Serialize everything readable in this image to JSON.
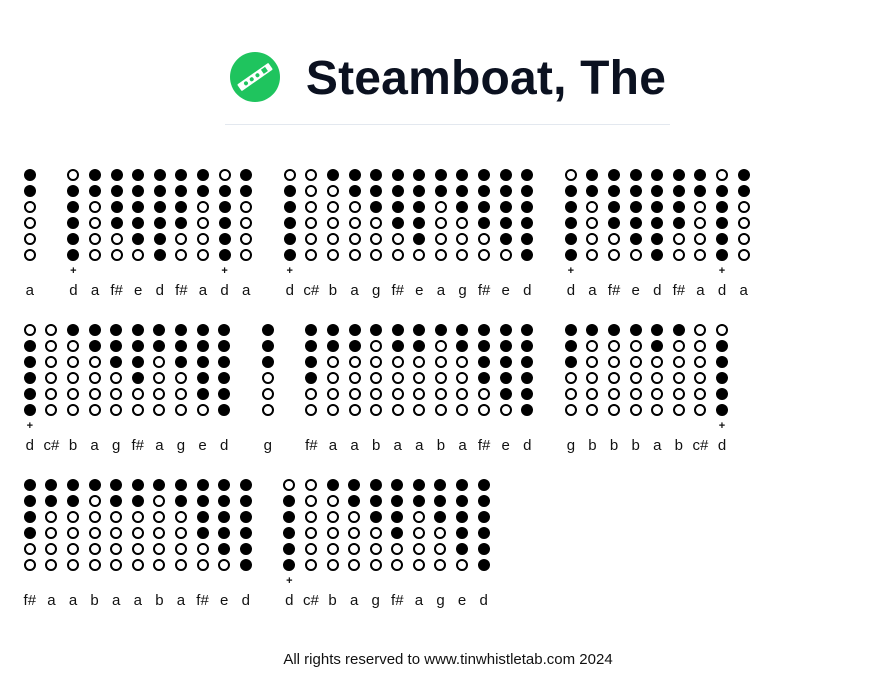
{
  "header": {
    "title": "Steamboat, The",
    "logo_icon": "tin-whistle-icon",
    "logo_color": "#1fc45e"
  },
  "footer": {
    "text": "All rights reserved to www.tinwhistletab.com 2024"
  },
  "upper_octave_marker": "+",
  "fingerings": {
    "d": [
      1,
      1,
      1,
      1,
      1,
      1
    ],
    "e": [
      1,
      1,
      1,
      1,
      1,
      0
    ],
    "f#": [
      1,
      1,
      1,
      1,
      0,
      0
    ],
    "g": [
      1,
      1,
      1,
      0,
      0,
      0
    ],
    "a": [
      1,
      1,
      0,
      0,
      0,
      0
    ],
    "b": [
      1,
      0,
      0,
      0,
      0,
      0
    ],
    "c#": [
      0,
      0,
      0,
      0,
      0,
      0
    ],
    "d+": [
      0,
      1,
      1,
      1,
      1,
      1
    ]
  },
  "groups": [
    [
      "a"
    ],
    [
      "d+",
      "a",
      "f#",
      "e",
      "d",
      "f#",
      "a",
      "d+",
      "a"
    ],
    [
      "d+",
      "c#",
      "b",
      "a",
      "g",
      "f#",
      "e",
      "a",
      "g",
      "f#",
      "e",
      "d"
    ],
    [
      "d+",
      "a",
      "f#",
      "e",
      "d",
      "f#",
      "a",
      "d+",
      "a"
    ],
    [
      "d+",
      "c#",
      "b",
      "a",
      "g",
      "f#",
      "a",
      "g",
      "e",
      "d"
    ],
    [
      "g"
    ],
    [
      "f#",
      "a",
      "a",
      "b",
      "a",
      "a",
      "b",
      "a",
      "f#",
      "e",
      "d"
    ],
    [
      "g",
      "b",
      "b",
      "b",
      "a",
      "b",
      "c#",
      "d+"
    ],
    [
      "f#",
      "a",
      "a",
      "b",
      "a",
      "a",
      "b",
      "a",
      "f#",
      "e",
      "d"
    ],
    [
      "d+",
      "c#",
      "b",
      "a",
      "g",
      "f#",
      "a",
      "g",
      "e",
      "d"
    ]
  ]
}
